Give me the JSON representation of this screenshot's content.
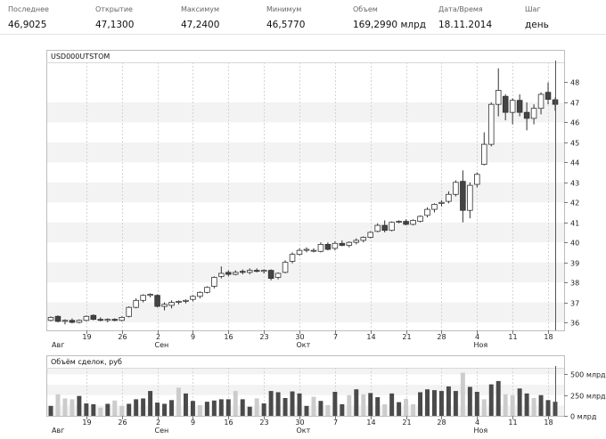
{
  "quote_header": {
    "columns": [
      {
        "label": "Последнее",
        "value": "46,9025"
      },
      {
        "label": "Открытие",
        "value": "47,1300"
      },
      {
        "label": "Максимум",
        "value": "47,2400"
      },
      {
        "label": "Минимум",
        "value": "46,5770"
      },
      {
        "label": "Объем",
        "value": "169,2990 млрд"
      },
      {
        "label": "Дата/Время",
        "value": "18.11.2014"
      },
      {
        "label": "Шаг",
        "value": "день"
      }
    ]
  },
  "chart_data": [
    {
      "type": "candlestick",
      "title": "USD000UTSTOM",
      "ylim": [
        35.6,
        49.0
      ],
      "y_ticks": [
        "36",
        "37",
        "38",
        "39",
        "40",
        "41",
        "42",
        "43",
        "44",
        "45",
        "46",
        "47",
        "48"
      ],
      "x_ticks": [
        {
          "day": "19",
          "month": ""
        },
        {
          "day": "26",
          "month": ""
        },
        {
          "day": "2",
          "month": "Сен"
        },
        {
          "day": "9",
          "month": ""
        },
        {
          "day": "16",
          "month": ""
        },
        {
          "day": "23",
          "month": ""
        },
        {
          "day": "30",
          "month": "Окт"
        },
        {
          "day": "7",
          "month": ""
        },
        {
          "day": "14",
          "month": ""
        },
        {
          "day": "21",
          "month": ""
        },
        {
          "day": "28",
          "month": ""
        },
        {
          "day": "4",
          "month": "Ноя"
        },
        {
          "day": "11",
          "month": ""
        },
        {
          "day": "18",
          "month": ""
        }
      ],
      "first_month_label": "Авг",
      "ohlc": [
        [
          36.1,
          36.3,
          36.05,
          36.25
        ],
        [
          36.3,
          36.35,
          36.0,
          36.05
        ],
        [
          36.05,
          36.15,
          35.9,
          36.1
        ],
        [
          36.1,
          36.2,
          35.95,
          36.0
        ],
        [
          36.0,
          36.15,
          35.95,
          36.1
        ],
        [
          36.1,
          36.35,
          36.05,
          36.3
        ],
        [
          36.35,
          36.4,
          36.1,
          36.15
        ],
        [
          36.15,
          36.25,
          36.05,
          36.1
        ],
        [
          36.1,
          36.2,
          36.0,
          36.15
        ],
        [
          36.15,
          36.2,
          36.05,
          36.1
        ],
        [
          36.1,
          36.3,
          36.05,
          36.25
        ],
        [
          36.3,
          36.8,
          36.25,
          36.75
        ],
        [
          36.75,
          37.2,
          36.7,
          37.1
        ],
        [
          37.1,
          37.4,
          37.0,
          37.35
        ],
        [
          37.35,
          37.45,
          37.25,
          37.4
        ],
        [
          37.35,
          37.4,
          36.75,
          36.8
        ],
        [
          36.8,
          37.0,
          36.6,
          36.9
        ],
        [
          36.85,
          37.1,
          36.7,
          37.0
        ],
        [
          37.0,
          37.1,
          36.9,
          37.05
        ],
        [
          37.05,
          37.15,
          36.95,
          37.1
        ],
        [
          37.15,
          37.35,
          37.05,
          37.3
        ],
        [
          37.3,
          37.55,
          37.2,
          37.5
        ],
        [
          37.5,
          37.8,
          37.45,
          37.75
        ],
        [
          37.8,
          38.3,
          37.7,
          38.25
        ],
        [
          38.3,
          38.8,
          38.2,
          38.45
        ],
        [
          38.5,
          38.6,
          38.3,
          38.4
        ],
        [
          38.4,
          38.6,
          38.35,
          38.5
        ],
        [
          38.55,
          38.65,
          38.4,
          38.5
        ],
        [
          38.5,
          38.7,
          38.4,
          38.6
        ],
        [
          38.6,
          38.7,
          38.5,
          38.55
        ],
        [
          38.55,
          38.65,
          38.45,
          38.6
        ],
        [
          38.6,
          38.65,
          38.1,
          38.2
        ],
        [
          38.25,
          38.5,
          38.15,
          38.45
        ],
        [
          38.5,
          39.1,
          38.45,
          39.0
        ],
        [
          39.05,
          39.5,
          38.95,
          39.4
        ],
        [
          39.4,
          39.7,
          39.35,
          39.6
        ],
        [
          39.6,
          39.75,
          39.5,
          39.65
        ],
        [
          39.6,
          39.7,
          39.5,
          39.6
        ],
        [
          39.55,
          40.0,
          39.5,
          39.9
        ],
        [
          39.9,
          40.0,
          39.6,
          39.65
        ],
        [
          39.7,
          40.05,
          39.6,
          39.95
        ],
        [
          39.95,
          40.1,
          39.8,
          39.85
        ],
        [
          39.85,
          40.05,
          39.75,
          40.0
        ],
        [
          40.0,
          40.2,
          39.9,
          40.1
        ],
        [
          40.1,
          40.3,
          40.0,
          40.25
        ],
        [
          40.25,
          40.55,
          40.2,
          40.5
        ],
        [
          40.55,
          40.95,
          40.5,
          40.85
        ],
        [
          40.85,
          41.1,
          40.5,
          40.6
        ],
        [
          40.6,
          41.05,
          40.55,
          41.0
        ],
        [
          41.05,
          41.1,
          40.95,
          41.05
        ],
        [
          41.05,
          41.15,
          40.85,
          40.9
        ],
        [
          40.9,
          41.15,
          40.85,
          41.1
        ],
        [
          41.05,
          41.35,
          41.0,
          41.3
        ],
        [
          41.35,
          41.75,
          41.25,
          41.65
        ],
        [
          41.65,
          41.95,
          41.5,
          41.9
        ],
        [
          41.95,
          42.1,
          41.8,
          42.0
        ],
        [
          42.05,
          42.55,
          41.95,
          42.4
        ],
        [
          42.4,
          43.1,
          42.3,
          43.0
        ],
        [
          43.05,
          43.6,
          41.0,
          41.6
        ],
        [
          41.6,
          43.0,
          41.2,
          42.85
        ],
        [
          42.9,
          43.5,
          42.75,
          43.4
        ],
        [
          43.9,
          45.5,
          43.85,
          44.9
        ],
        [
          44.9,
          47.0,
          44.8,
          46.9
        ],
        [
          46.9,
          48.7,
          46.3,
          47.6
        ],
        [
          47.3,
          47.4,
          46.1,
          46.5
        ],
        [
          46.5,
          47.2,
          45.9,
          47.1
        ],
        [
          47.1,
          47.4,
          46.3,
          46.5
        ],
        [
          46.5,
          47.0,
          45.6,
          46.2
        ],
        [
          46.2,
          46.9,
          45.9,
          46.7
        ],
        [
          46.7,
          47.5,
          46.4,
          47.4
        ],
        [
          47.5,
          48.0,
          46.9,
          47.15
        ],
        [
          47.13,
          47.24,
          46.58,
          46.9
        ]
      ]
    },
    {
      "type": "bar",
      "title": "Объём сделок, руб",
      "ylim": [
        0,
        580
      ],
      "y_ticks": [
        "0 млрд",
        "250 млрд",
        "500 млрд"
      ],
      "values": [
        {
          "v": 120,
          "c": "dark"
        },
        {
          "v": 260,
          "c": "light"
        },
        {
          "v": 210,
          "c": "light"
        },
        {
          "v": 200,
          "c": "light"
        },
        {
          "v": 240,
          "c": "dark"
        },
        {
          "v": 150,
          "c": "dark"
        },
        {
          "v": 140,
          "c": "dark"
        },
        {
          "v": 100,
          "c": "light"
        },
        {
          "v": 145,
          "c": "dark"
        },
        {
          "v": 185,
          "c": "light"
        },
        {
          "v": 120,
          "c": "light"
        },
        {
          "v": 145,
          "c": "dark"
        },
        {
          "v": 200,
          "c": "dark"
        },
        {
          "v": 210,
          "c": "dark"
        },
        {
          "v": 300,
          "c": "dark"
        },
        {
          "v": 160,
          "c": "dark"
        },
        {
          "v": 145,
          "c": "dark"
        },
        {
          "v": 190,
          "c": "dark"
        },
        {
          "v": 340,
          "c": "light"
        },
        {
          "v": 270,
          "c": "dark"
        },
        {
          "v": 180,
          "c": "dark"
        },
        {
          "v": 130,
          "c": "light"
        },
        {
          "v": 170,
          "c": "dark"
        },
        {
          "v": 185,
          "c": "dark"
        },
        {
          "v": 200,
          "c": "dark"
        },
        {
          "v": 200,
          "c": "dark"
        },
        {
          "v": 300,
          "c": "light"
        },
        {
          "v": 200,
          "c": "dark"
        },
        {
          "v": 110,
          "c": "dark"
        },
        {
          "v": 210,
          "c": "light"
        },
        {
          "v": 150,
          "c": "dark"
        },
        {
          "v": 300,
          "c": "dark"
        },
        {
          "v": 285,
          "c": "dark"
        },
        {
          "v": 215,
          "c": "dark"
        },
        {
          "v": 295,
          "c": "dark"
        },
        {
          "v": 270,
          "c": "dark"
        },
        {
          "v": 120,
          "c": "dark"
        },
        {
          "v": 230,
          "c": "light"
        },
        {
          "v": 180,
          "c": "dark"
        },
        {
          "v": 130,
          "c": "light"
        },
        {
          "v": 290,
          "c": "dark"
        },
        {
          "v": 140,
          "c": "dark"
        },
        {
          "v": 250,
          "c": "light"
        },
        {
          "v": 320,
          "c": "dark"
        },
        {
          "v": 260,
          "c": "light"
        },
        {
          "v": 275,
          "c": "dark"
        },
        {
          "v": 225,
          "c": "dark"
        },
        {
          "v": 140,
          "c": "light"
        },
        {
          "v": 270,
          "c": "dark"
        },
        {
          "v": 165,
          "c": "dark"
        },
        {
          "v": 205,
          "c": "light"
        },
        {
          "v": 140,
          "c": "light"
        },
        {
          "v": 285,
          "c": "dark"
        },
        {
          "v": 320,
          "c": "dark"
        },
        {
          "v": 310,
          "c": "dark"
        },
        {
          "v": 300,
          "c": "dark"
        },
        {
          "v": 355,
          "c": "dark"
        },
        {
          "v": 300,
          "c": "dark"
        },
        {
          "v": 520,
          "c": "light"
        },
        {
          "v": 350,
          "c": "dark"
        },
        {
          "v": 290,
          "c": "dark"
        },
        {
          "v": 200,
          "c": "light"
        },
        {
          "v": 380,
          "c": "dark"
        },
        {
          "v": 420,
          "c": "dark"
        },
        {
          "v": 260,
          "c": "light"
        },
        {
          "v": 250,
          "c": "light"
        },
        {
          "v": 330,
          "c": "dark"
        },
        {
          "v": 270,
          "c": "dark"
        },
        {
          "v": 215,
          "c": "light"
        },
        {
          "v": 250,
          "c": "dark"
        },
        {
          "v": 190,
          "c": "dark"
        },
        {
          "v": 170,
          "c": "dark"
        }
      ]
    }
  ],
  "colors": {
    "up_fill": "#ffffff",
    "down_fill": "#444444",
    "candle_outline": "#333333",
    "vol_dark": "#4a4a4a",
    "vol_light": "#cccccc",
    "band": "#f3f3f3",
    "grid": "#d4d4d4"
  }
}
